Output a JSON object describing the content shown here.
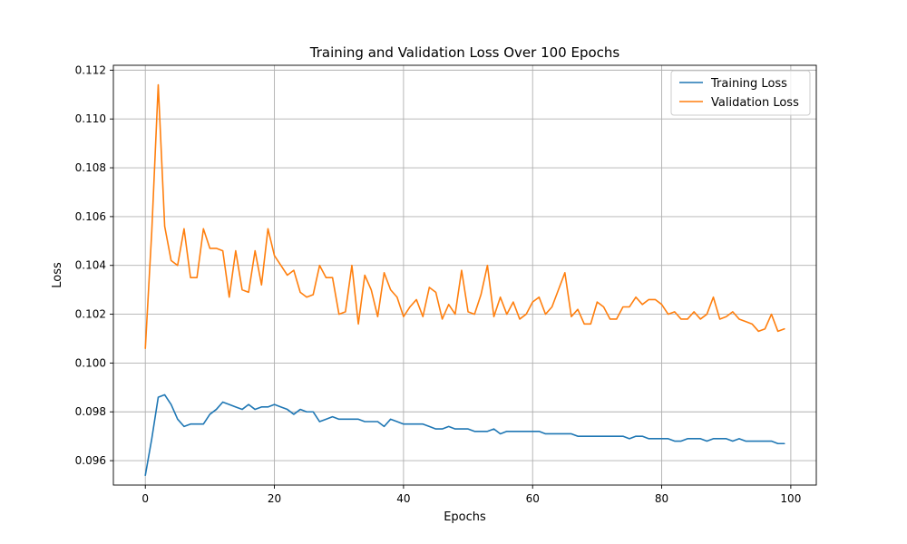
{
  "chart_data": {
    "type": "line",
    "title": "Training and Validation Loss Over 100 Epochs",
    "xlabel": "Epochs",
    "ylabel": "Loss",
    "xlim": [
      -4.95,
      103.95
    ],
    "ylim": [
      0.095,
      0.1122
    ],
    "xticks": [
      0,
      20,
      40,
      60,
      80,
      100
    ],
    "yticks": [
      0.096,
      0.098,
      0.1,
      0.102,
      0.104,
      0.106,
      0.108,
      0.11,
      0.112
    ],
    "xtick_labels": [
      "0",
      "20",
      "40",
      "60",
      "80",
      "100"
    ],
    "ytick_labels": [
      "0.096",
      "0.098",
      "0.100",
      "0.102",
      "0.104",
      "0.106",
      "0.108",
      "0.110",
      "0.112"
    ],
    "grid": true,
    "legend_position": "top-right",
    "series": [
      {
        "name": "Training Loss",
        "color": "#1f77b4",
        "x": [
          0,
          1,
          2,
          3,
          4,
          5,
          6,
          7,
          8,
          9,
          10,
          11,
          12,
          13,
          14,
          15,
          16,
          17,
          18,
          19,
          20,
          21,
          22,
          23,
          24,
          25,
          26,
          27,
          28,
          29,
          30,
          31,
          32,
          33,
          34,
          35,
          36,
          37,
          38,
          39,
          40,
          41,
          42,
          43,
          44,
          45,
          46,
          47,
          48,
          49,
          50,
          51,
          52,
          53,
          54,
          55,
          56,
          57,
          58,
          59,
          60,
          61,
          62,
          63,
          64,
          65,
          66,
          67,
          68,
          69,
          70,
          71,
          72,
          73,
          74,
          75,
          76,
          77,
          78,
          79,
          80,
          81,
          82,
          83,
          84,
          85,
          86,
          87,
          88,
          89,
          90,
          91,
          92,
          93,
          94,
          95,
          96,
          97,
          98,
          99
        ],
        "values": [
          0.0954,
          0.0969,
          0.0986,
          0.0987,
          0.0983,
          0.0977,
          0.0974,
          0.0975,
          0.0975,
          0.0975,
          0.0979,
          0.0981,
          0.0984,
          0.0983,
          0.0982,
          0.0981,
          0.0983,
          0.0981,
          0.0982,
          0.0982,
          0.0983,
          0.0982,
          0.0981,
          0.0979,
          0.0981,
          0.098,
          0.098,
          0.0976,
          0.0977,
          0.0978,
          0.0977,
          0.0977,
          0.0977,
          0.0977,
          0.0976,
          0.0976,
          0.0976,
          0.0974,
          0.0977,
          0.0976,
          0.0975,
          0.0975,
          0.0975,
          0.0975,
          0.0974,
          0.0973,
          0.0973,
          0.0974,
          0.0973,
          0.0973,
          0.0973,
          0.0972,
          0.0972,
          0.0972,
          0.0973,
          0.0971,
          0.0972,
          0.0972,
          0.0972,
          0.0972,
          0.0972,
          0.0972,
          0.0971,
          0.0971,
          0.0971,
          0.0971,
          0.0971,
          0.097,
          0.097,
          0.097,
          0.097,
          0.097,
          0.097,
          0.097,
          0.097,
          0.0969,
          0.097,
          0.097,
          0.0969,
          0.0969,
          0.0969,
          0.0969,
          0.0968,
          0.0968,
          0.0969,
          0.0969,
          0.0969,
          0.0968,
          0.0969,
          0.0969,
          0.0969,
          0.0968,
          0.0969,
          0.0968,
          0.0968,
          0.0968,
          0.0968,
          0.0968,
          0.0967,
          0.0967
        ]
      },
      {
        "name": "Validation Loss",
        "color": "#ff7f0e",
        "x": [
          0,
          1,
          2,
          3,
          4,
          5,
          6,
          7,
          8,
          9,
          10,
          11,
          12,
          13,
          14,
          15,
          16,
          17,
          18,
          19,
          20,
          21,
          22,
          23,
          24,
          25,
          26,
          27,
          28,
          29,
          30,
          31,
          32,
          33,
          34,
          35,
          36,
          37,
          38,
          39,
          40,
          41,
          42,
          43,
          44,
          45,
          46,
          47,
          48,
          49,
          50,
          51,
          52,
          53,
          54,
          55,
          56,
          57,
          58,
          59,
          60,
          61,
          62,
          63,
          64,
          65,
          66,
          67,
          68,
          69,
          70,
          71,
          72,
          73,
          74,
          75,
          76,
          77,
          78,
          79,
          80,
          81,
          82,
          83,
          84,
          85,
          86,
          87,
          88,
          89,
          90,
          91,
          92,
          93,
          94,
          95,
          96,
          97,
          98,
          99
        ],
        "values": [
          0.1006,
          0.1054,
          0.1114,
          0.1056,
          0.1042,
          0.104,
          0.1055,
          0.1035,
          0.1035,
          0.1055,
          0.1047,
          0.1047,
          0.1046,
          0.1027,
          0.1046,
          0.103,
          0.1029,
          0.1046,
          0.1032,
          0.1055,
          0.1044,
          0.104,
          0.1036,
          0.1038,
          0.1029,
          0.1027,
          0.1028,
          0.104,
          0.1035,
          0.1035,
          0.102,
          0.1021,
          0.104,
          0.1016,
          0.1036,
          0.103,
          0.1019,
          0.1037,
          0.103,
          0.1027,
          0.1019,
          0.1023,
          0.1026,
          0.1019,
          0.1031,
          0.1029,
          0.1018,
          0.1024,
          0.102,
          0.1038,
          0.1021,
          0.102,
          0.1028,
          0.104,
          0.1019,
          0.1027,
          0.102,
          0.1025,
          0.1018,
          0.102,
          0.1025,
          0.1027,
          0.102,
          0.1023,
          0.103,
          0.1037,
          0.1019,
          0.1022,
          0.1016,
          0.1016,
          0.1025,
          0.1023,
          0.1018,
          0.1018,
          0.1023,
          0.1023,
          0.1027,
          0.1024,
          0.1026,
          0.1026,
          0.1024,
          0.102,
          0.1021,
          0.1018,
          0.1018,
          0.1021,
          0.1018,
          0.102,
          0.1027,
          0.1018,
          0.1019,
          0.1021,
          0.1018,
          0.1017,
          0.1016,
          0.1013,
          0.1014,
          0.102,
          0.1013,
          0.1014
        ]
      }
    ]
  }
}
